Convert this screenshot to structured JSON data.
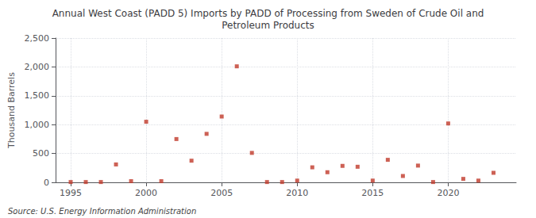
{
  "chart_data": {
    "type": "scatter",
    "title": "Annual West Coast (PADD 5) Imports by PADD of Processing from Sweden of Crude Oil and\nPetroleum Products",
    "ylabel": "Thousand Barrels",
    "annotations": [
      "Source: U.S. Energy Information Administration"
    ],
    "x": [
      1995,
      1996,
      1997,
      1998,
      1999,
      2000,
      2001,
      2002,
      2003,
      2004,
      2005,
      2006,
      2007,
      2008,
      2009,
      2010,
      2011,
      2012,
      2013,
      2014,
      2015,
      2016,
      2017,
      2018,
      2019,
      2020,
      2021,
      2022,
      2023
    ],
    "values": [
      5,
      5,
      5,
      310,
      20,
      1050,
      20,
      750,
      375,
      840,
      1140,
      2010,
      510,
      5,
      5,
      30,
      260,
      175,
      285,
      270,
      30,
      390,
      110,
      290,
      5,
      1020,
      60,
      30,
      165
    ],
    "color": "#c0392b",
    "marker": "square",
    "xlim": [
      1994.0,
      2024.5
    ],
    "xticks": [
      1995,
      2000,
      2005,
      2010,
      2015,
      2020
    ],
    "ylim": [
      0,
      2500
    ],
    "yticks": [
      0,
      500,
      {
        "value": 1000,
        "label": "1,000"
      },
      {
        "value": 1500,
        "label": "1,500"
      },
      {
        "value": 2000,
        "label": "2,000"
      },
      {
        "value": 2500,
        "label": "2,500"
      }
    ],
    "grid": true
  }
}
